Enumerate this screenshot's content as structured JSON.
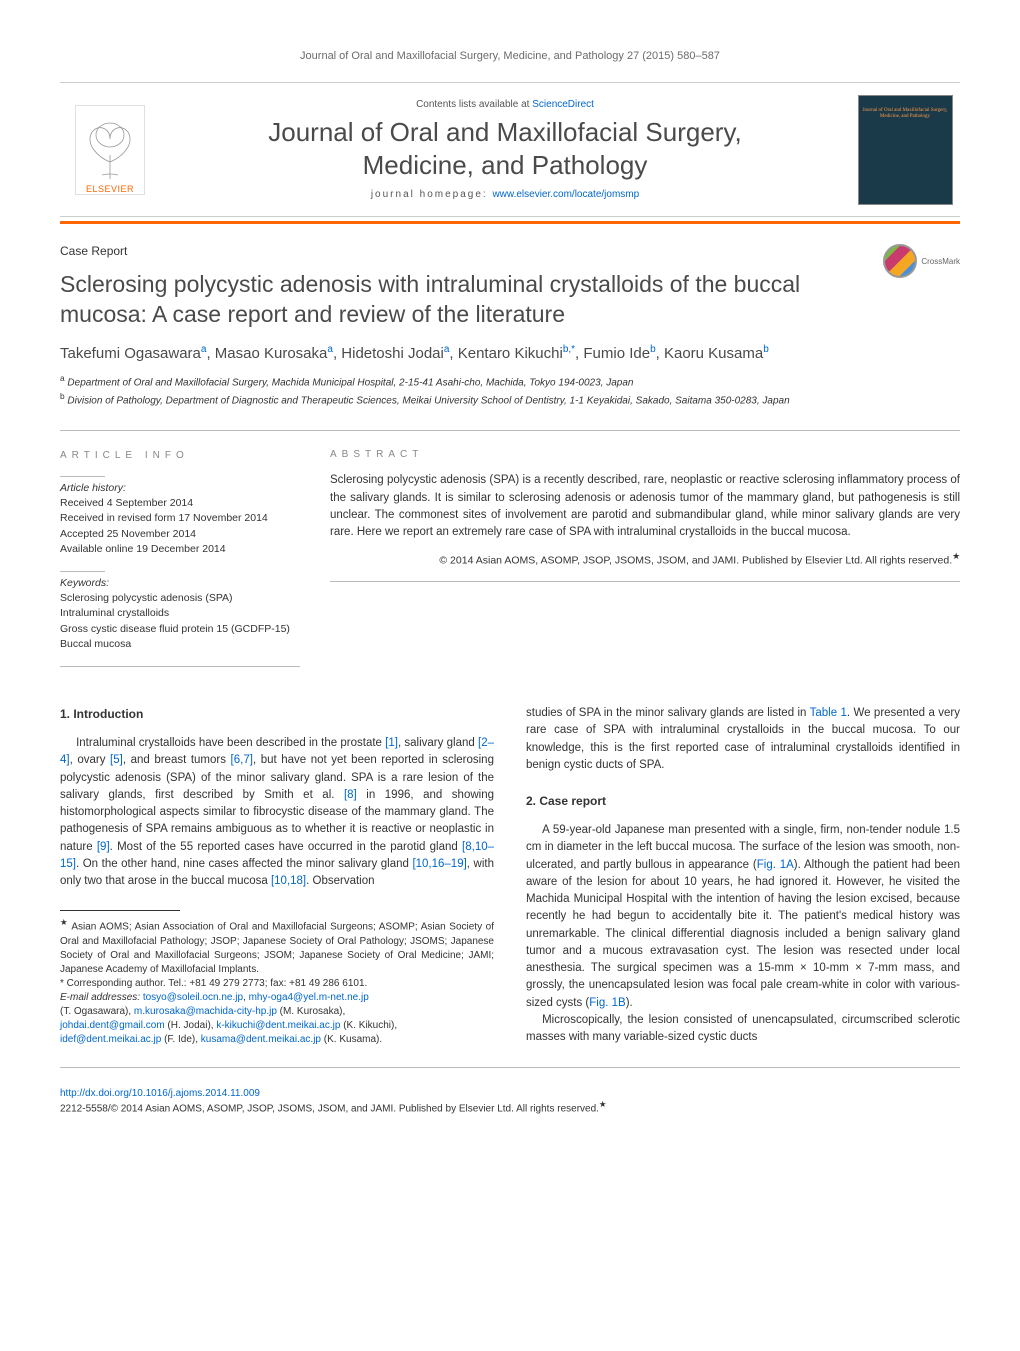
{
  "colors": {
    "accent": "#ff6600",
    "link": "#0066cc",
    "text": "#333333",
    "muted": "#6b6b6b",
    "title_gray": "#4a4a4a",
    "cover_bg": "#1a3a4a"
  },
  "header_ref": "Journal of Oral and Maxillofacial Surgery, Medicine, and Pathology 27 (2015) 580–587",
  "masthead": {
    "publisher_label": "ELSEVIER",
    "contents_prefix": "Contents lists available at ",
    "contents_link": "ScienceDirect",
    "journal_name_line1": "Journal of Oral and Maxillofacial Surgery,",
    "journal_name_line2": "Medicine, and Pathology",
    "homepage_prefix": "journal homepage: ",
    "homepage_url": "www.elsevier.com/locate/jomsmp",
    "cover_text": "Journal of Oral and Maxillofacial Surgery, Medicine, and Pathology"
  },
  "article_type": "Case Report",
  "crossmark_label": "CrossMark",
  "title": "Sclerosing polycystic adenosis with intraluminal crystalloids of the buccal mucosa: A case report and review of the literature",
  "authors_html": "Takefumi Ogasawara<sup>a</sup>, Masao Kurosaka<sup>a</sup>, Hidetoshi Jodai<sup>a</sup>, Kentaro Kikuchi<sup>b,*</sup>, Fumio Ide<sup>b</sup>, Kaoru Kusama<sup>b</sup>",
  "affiliations": {
    "a": "Department of Oral and Maxillofacial Surgery, Machida Municipal Hospital, 2-15-41 Asahi-cho, Machida, Tokyo 194-0023, Japan",
    "b": "Division of Pathology, Department of Diagnostic and Therapeutic Sciences, Meikai University School of Dentistry, 1-1 Keyakidai, Sakado, Saitama 350-0283, Japan"
  },
  "article_info": {
    "heading": "article info",
    "history_label": "Article history:",
    "received": "Received 4 September 2014",
    "revised": "Received in revised form 17 November 2014",
    "accepted": "Accepted 25 November 2014",
    "online": "Available online 19 December 2014",
    "keywords_label": "Keywords:",
    "keywords": [
      "Sclerosing polycystic adenosis (SPA)",
      "Intraluminal crystalloids",
      "Gross cystic disease fluid protein 15 (GCDFP-15)",
      "Buccal mucosa"
    ]
  },
  "abstract": {
    "heading": "abstract",
    "text": "Sclerosing polycystic adenosis (SPA) is a recently described, rare, neoplastic or reactive sclerosing inflammatory process of the salivary glands. It is similar to sclerosing adenosis or adenosis tumor of the mammary gland, but pathogenesis is still unclear. The commonest sites of involvement are parotid and submandibular gland, while minor salivary glands are very rare. Here we report an extremely rare case of SPA with intraluminal crystalloids in the buccal mucosa.",
    "copyright": "© 2014 Asian AOMS, ASOMP, JSOP, JSOMS, JSOM, and JAMI. Published by Elsevier Ltd. All rights reserved.",
    "copyright_marker": "★"
  },
  "sections": {
    "intro_heading": "1. Introduction",
    "intro_para": "Intraluminal crystalloids have been described in the prostate [1], salivary gland [2–4], ovary [5], and breast tumors [6,7], but have not yet been reported in sclerosing polycystic adenosis (SPA) of the minor salivary gland. SPA is a rare lesion of the salivary glands, first described by Smith et al. [8] in 1996, and showing histomorphological aspects similar to fibrocystic disease of the mammary gland. The pathogenesis of SPA remains ambiguous as to whether it is reactive or neoplastic in nature [9]. Most of the 55 reported cases have occurred in the parotid gland [8,10–15]. On the other hand, nine cases affected the minor salivary gland [10,16–19], with only two that arose in the buccal mucosa [10,18]. Observation",
    "intro_para_cont": "studies of SPA in the minor salivary glands are listed in Table 1. We presented a very rare case of SPA with intraluminal crystalloids in the buccal mucosa. To our knowledge, this is the first reported case of intraluminal crystalloids identified in benign cystic ducts of SPA.",
    "case_heading": "2. Case report",
    "case_para1": "A 59-year-old Japanese man presented with a single, firm, non-tender nodule 1.5 cm in diameter in the left buccal mucosa. The surface of the lesion was smooth, non-ulcerated, and partly bullous in appearance (Fig. 1A). Although the patient had been aware of the lesion for about 10 years, he had ignored it. However, he visited the Machida Municipal Hospital with the intention of having the lesion excised, because recently he had begun to accidentally bite it. The patient's medical history was unremarkable. The clinical differential diagnosis included a benign salivary gland tumor and a mucous extravasation cyst. The lesion was resected under local anesthesia. The surgical specimen was a 15-mm × 10-mm × 7-mm mass, and grossly, the unencapsulated lesion was focal pale cream-white in color with various-sized cysts (Fig. 1B).",
    "case_para2": "Microscopically, the lesion consisted of unencapsulated, circumscribed sclerotic masses with many variable-sized cystic ducts"
  },
  "footnotes": {
    "star": "Asian AOMS; Asian Association of Oral and Maxillofacial Surgeons; ASOMP; Asian Society of Oral and Maxillofacial Pathology; JSOP; Japanese Society of Oral Pathology; JSOMS; Japanese Society of Oral and Maxillofacial Surgeons; JSOM; Japanese Society of Oral Medicine; JAMI; Japanese Academy of Maxillofacial Implants.",
    "corr": "Corresponding author. Tel.: +81 49 279 2773; fax: +81 49 286 6101.",
    "emails_label": "E-mail addresses:",
    "emails": [
      {
        "addr": "tosyo@soleil.ocn.ne.jp",
        "who": ""
      },
      {
        "addr": "mhy-oga4@yel.m-net.ne.jp",
        "who": "(T. Ogasawara)"
      },
      {
        "addr": "m.kurosaka@machida-city-hp.jp",
        "who": "(M. Kurosaka)"
      },
      {
        "addr": "johdai.dent@gmail.com",
        "who": "(H. Jodai)"
      },
      {
        "addr": "k-kikuchi@dent.meikai.ac.jp",
        "who": "(K. Kikuchi)"
      },
      {
        "addr": "idef@dent.meikai.ac.jp",
        "who": "(F. Ide)"
      },
      {
        "addr": "kusama@dent.meikai.ac.jp",
        "who": "(K. Kusama)"
      }
    ]
  },
  "footer": {
    "doi": "http://dx.doi.org/10.1016/j.ajoms.2014.11.009",
    "issn_line": "2212-5558/© 2014 Asian AOMS, ASOMP, JSOP, JSOMS, JSOM, and JAMI. Published by Elsevier Ltd. All rights reserved.",
    "marker": "★"
  }
}
